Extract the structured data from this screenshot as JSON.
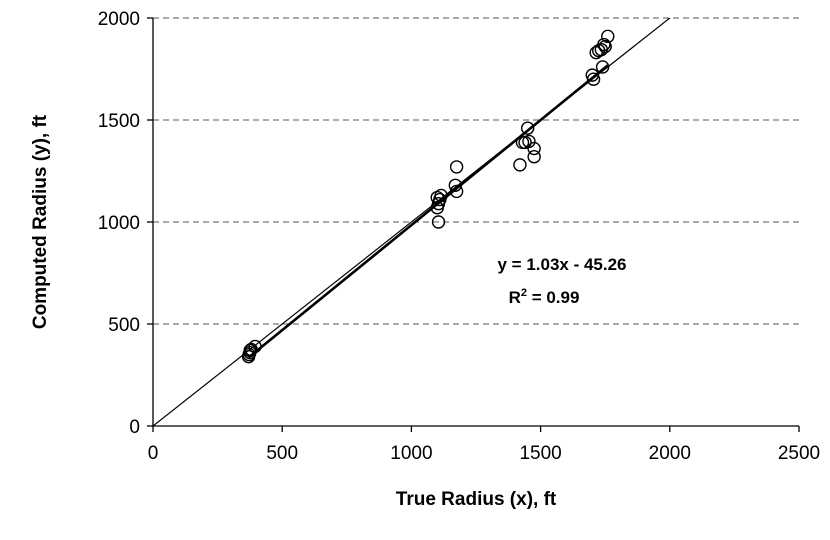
{
  "chart_data": {
    "type": "scatter",
    "title": "",
    "xlabel": "True Radius (x), ft",
    "ylabel": "Computed Radius (y), ft",
    "xlim": [
      0,
      2500
    ],
    "ylim": [
      0,
      2000
    ],
    "x_ticks": [
      0,
      500,
      1000,
      1500,
      2000,
      2500
    ],
    "y_ticks": [
      0,
      500,
      1000,
      1500,
      2000
    ],
    "grid": "horizontal dashed",
    "legend": "none",
    "annotation": {
      "equation": "y = 1.03x - 45.26",
      "r2_prefix": "R",
      "r2_sup": "2",
      "r2_suffix": " = 0.99"
    },
    "reference_line": {
      "slope": 1.0,
      "intercept": 0
    },
    "trendline": {
      "slope": 1.03,
      "intercept": -45.26,
      "x_range": [
        370,
        1760
      ]
    },
    "series": [
      {
        "marker": "open-circle",
        "points": [
          {
            "x": 370,
            "y": 340
          },
          {
            "x": 372,
            "y": 350
          },
          {
            "x": 375,
            "y": 360
          },
          {
            "x": 376,
            "y": 370
          },
          {
            "x": 380,
            "y": 375
          },
          {
            "x": 395,
            "y": 390
          },
          {
            "x": 1100,
            "y": 1120
          },
          {
            "x": 1100,
            "y": 1070
          },
          {
            "x": 1105,
            "y": 1090
          },
          {
            "x": 1110,
            "y": 1110
          },
          {
            "x": 1115,
            "y": 1130
          },
          {
            "x": 1105,
            "y": 1000
          },
          {
            "x": 1170,
            "y": 1180
          },
          {
            "x": 1175,
            "y": 1150
          },
          {
            "x": 1175,
            "y": 1270
          },
          {
            "x": 1420,
            "y": 1280
          },
          {
            "x": 1430,
            "y": 1390
          },
          {
            "x": 1440,
            "y": 1390
          },
          {
            "x": 1450,
            "y": 1460
          },
          {
            "x": 1455,
            "y": 1395
          },
          {
            "x": 1475,
            "y": 1360
          },
          {
            "x": 1475,
            "y": 1320
          },
          {
            "x": 1700,
            "y": 1720
          },
          {
            "x": 1705,
            "y": 1700
          },
          {
            "x": 1715,
            "y": 1830
          },
          {
            "x": 1725,
            "y": 1840
          },
          {
            "x": 1735,
            "y": 1845
          },
          {
            "x": 1740,
            "y": 1760
          },
          {
            "x": 1745,
            "y": 1870
          },
          {
            "x": 1750,
            "y": 1860
          },
          {
            "x": 1760,
            "y": 1910
          }
        ]
      }
    ]
  }
}
